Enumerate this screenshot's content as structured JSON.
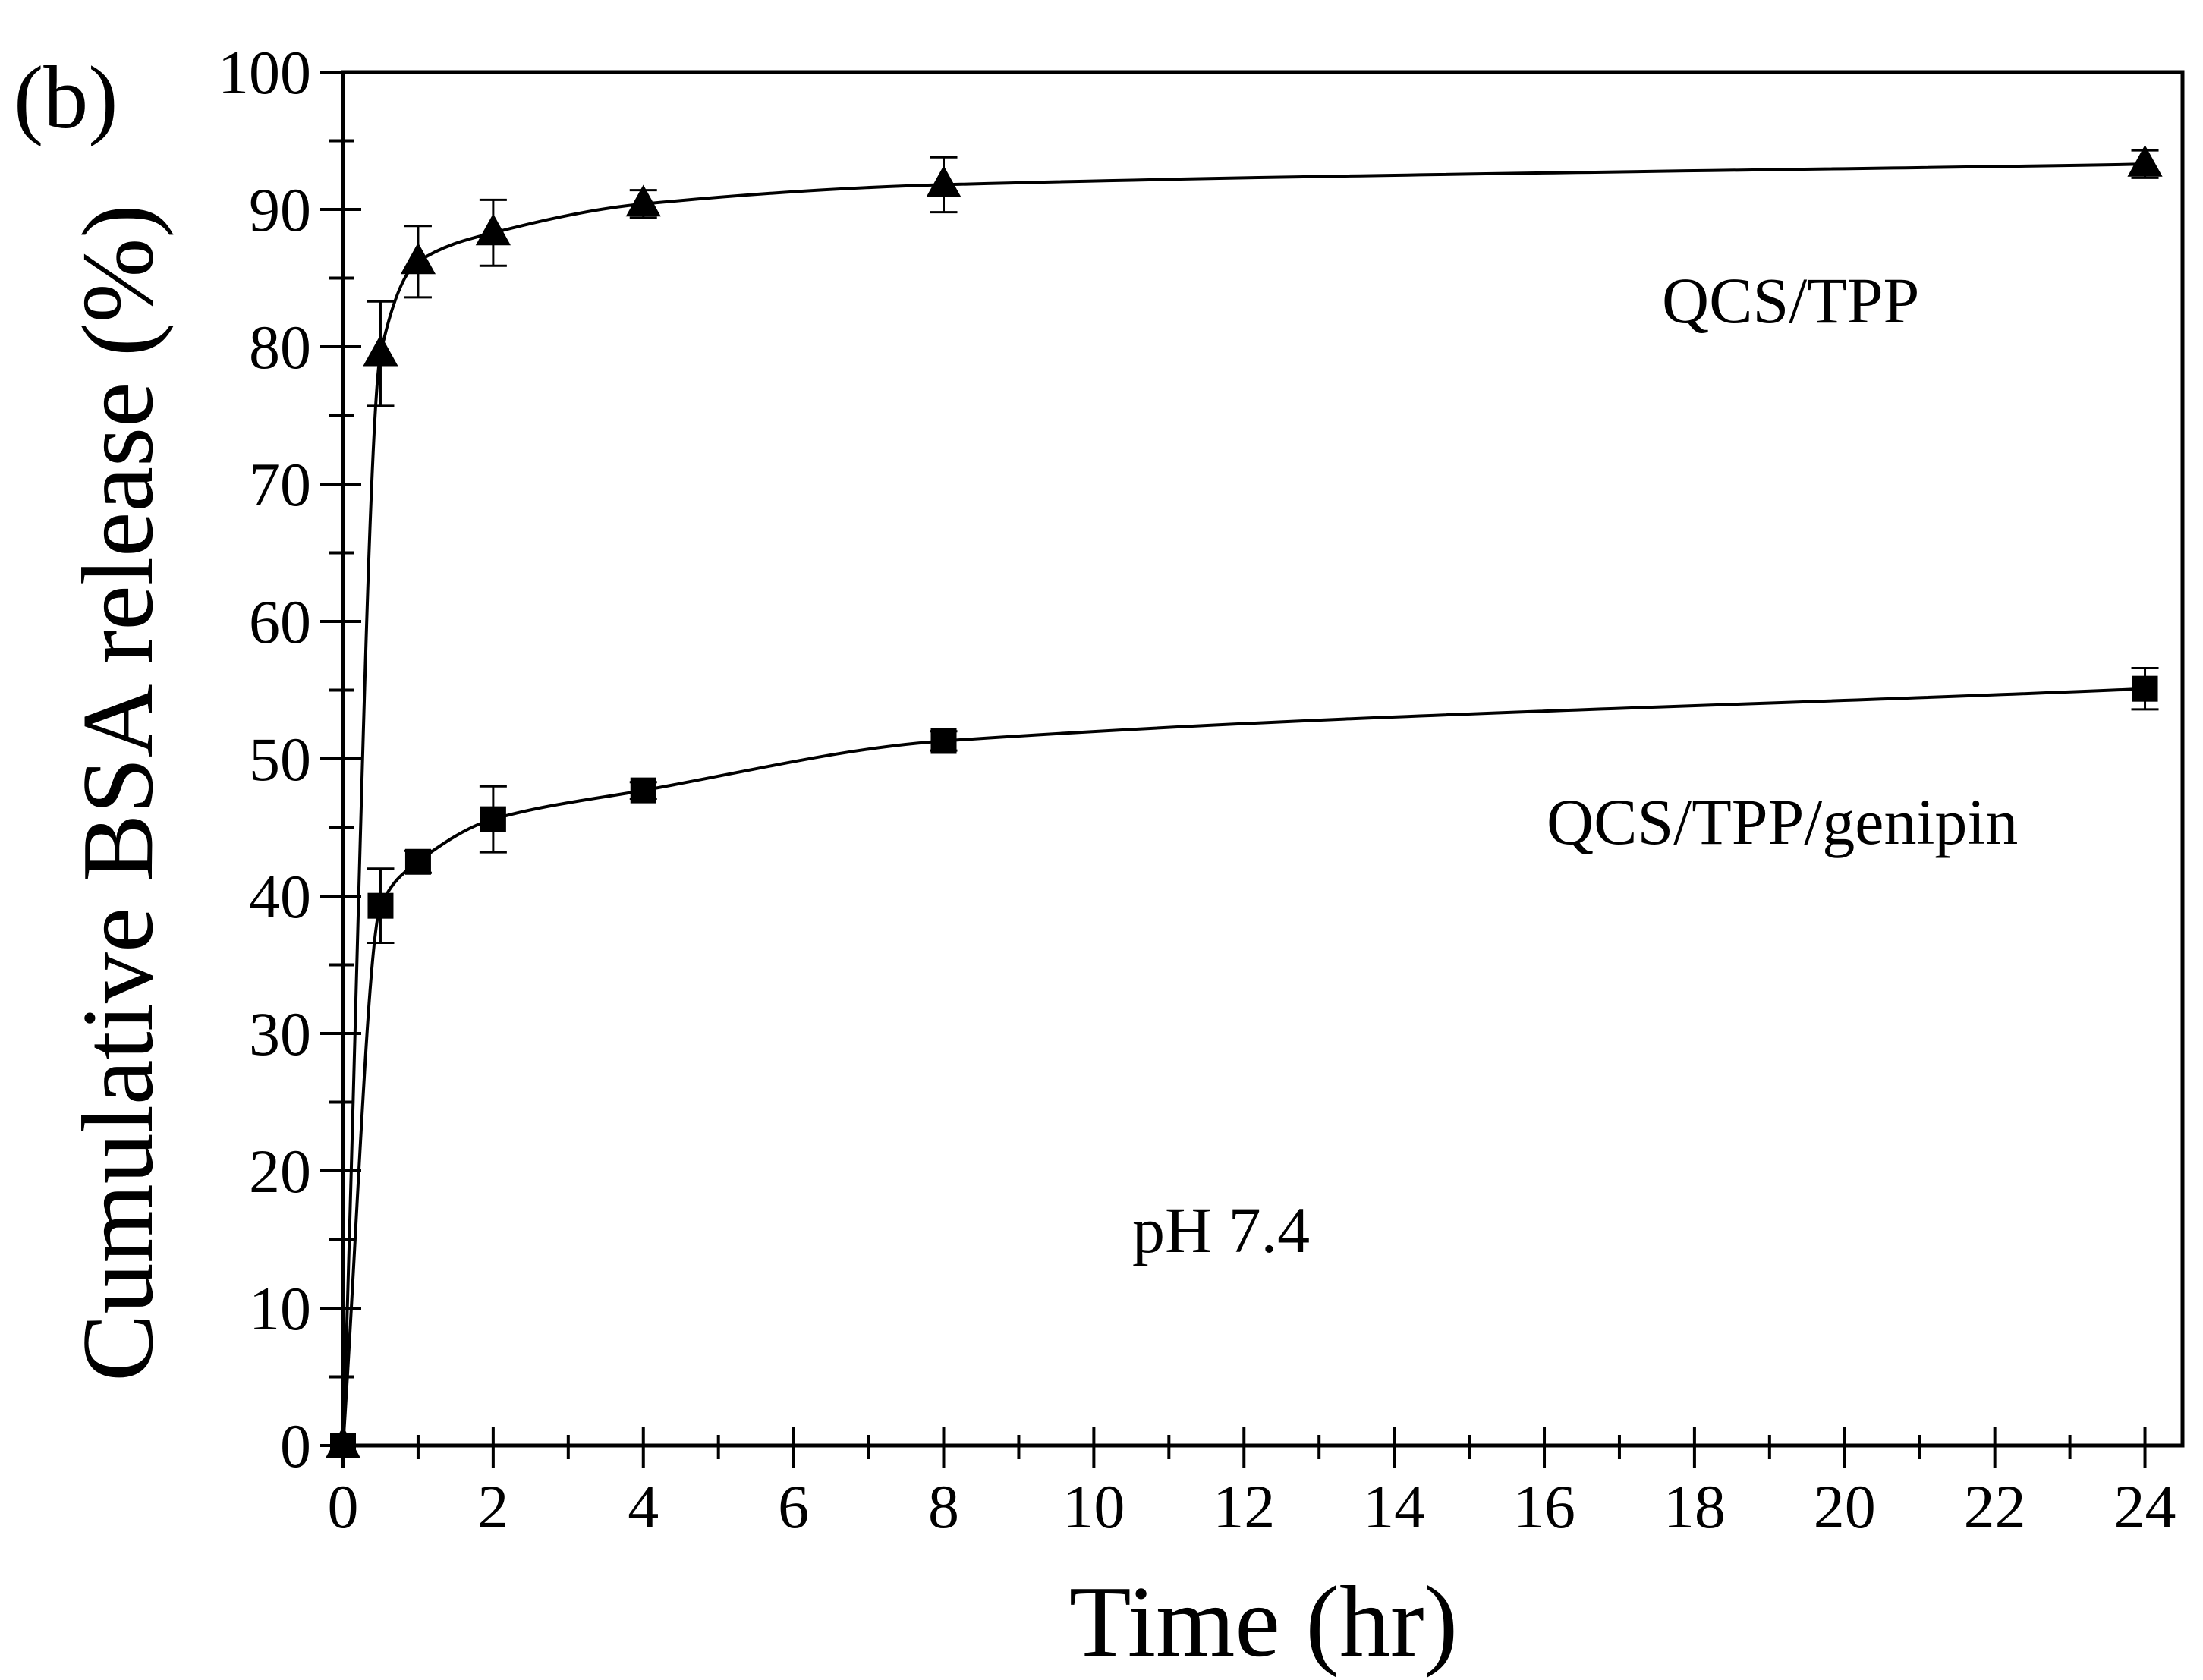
{
  "chart_data": {
    "type": "scatter",
    "panel_label": "(b)",
    "title": "",
    "xlabel": "Time (hr)",
    "ylabel": "Cumulative BSA release (%)",
    "xlim": [
      0,
      24.5
    ],
    "ylim": [
      0,
      100
    ],
    "x_ticks": [
      0,
      2,
      4,
      6,
      8,
      10,
      12,
      14,
      16,
      18,
      20,
      22,
      24
    ],
    "x_tick_labels": [
      "0",
      "2",
      "4",
      "6",
      "8",
      "10",
      "12",
      "14",
      "16",
      "18",
      "20",
      "22",
      "24"
    ],
    "y_ticks": [
      0,
      10,
      20,
      30,
      40,
      50,
      60,
      70,
      80,
      90,
      100
    ],
    "y_tick_labels": [
      "0",
      "10",
      "20",
      "30",
      "40",
      "50",
      "60",
      "70",
      "80",
      "90",
      "100"
    ],
    "grid": false,
    "series": [
      {
        "name": "QCS/TPP",
        "marker": "triangle",
        "x": [
          0,
          0.5,
          1,
          2,
          4,
          8,
          24
        ],
        "y": [
          0,
          79.5,
          86.2,
          88.3,
          90.4,
          91.8,
          93.3
        ],
        "error": [
          0,
          3.8,
          2.6,
          2.4,
          1.0,
          2.0,
          1.0
        ],
        "fit_curve": true
      },
      {
        "name": "QCS/TPP/genipin",
        "marker": "square",
        "x": [
          0,
          0.5,
          1,
          2,
          4,
          8,
          24
        ],
        "y": [
          0,
          39.3,
          42.5,
          45.6,
          47.7,
          51.3,
          55.1
        ],
        "error": [
          0,
          2.7,
          0.8,
          2.4,
          0.6,
          0.7,
          1.5
        ],
        "fit_curve": true
      }
    ],
    "annotations": [
      {
        "text": "QCS/TPP"
      },
      {
        "text": "QCS/TPP/genipin"
      },
      {
        "text": "pH 7.4"
      }
    ]
  }
}
